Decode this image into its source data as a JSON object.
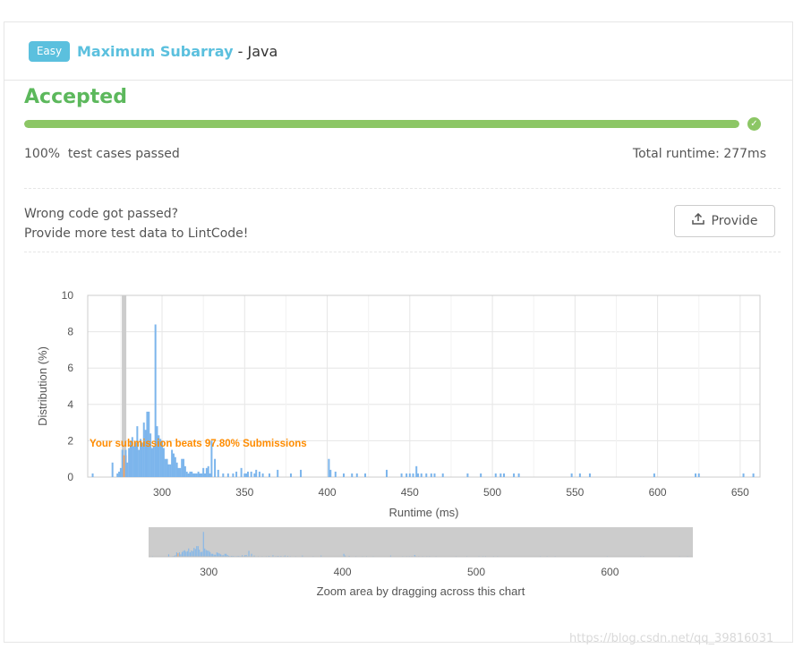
{
  "header": {
    "difficulty": "Easy",
    "problem": "Maximum Subarray",
    "separator": " - ",
    "language": "Java"
  },
  "result": {
    "status": "Accepted",
    "progress_percent": 100,
    "passed_text": "100%  test cases passed",
    "runtime_text": "Total runtime: 277ms"
  },
  "feedback": {
    "line1": "Wrong code got passed?",
    "line2": "Provide more test data to LintCode!",
    "provide_label": "Provide"
  },
  "watermark": "https://blog.csdn.net/qq_39816031",
  "colors": {
    "accent": "#5bc0de",
    "accepted": "#5cb85c",
    "progress": "#8cc665",
    "bar": "#7cb5ec",
    "highlight": "#f7a35c",
    "annotation": "#ff8c00"
  },
  "chart_data": {
    "type": "bar",
    "xlabel": "Runtime (ms)",
    "ylabel": "Distribution (%)",
    "xlim": [
      255,
      662
    ],
    "ylim": [
      0,
      10
    ],
    "xticks": [
      300,
      350,
      400,
      450,
      500,
      550,
      600,
      650
    ],
    "yticks": [
      0,
      2,
      4,
      6,
      8,
      10
    ],
    "grid": true,
    "annotation": "Your submission beats 97.80% Submissions",
    "submission_runtime": 277,
    "x": [
      258,
      270,
      273,
      274,
      275,
      276,
      277,
      278,
      279,
      280,
      281,
      282,
      283,
      284,
      285,
      286,
      287,
      288,
      289,
      290,
      291,
      292,
      293,
      294,
      295,
      296,
      297,
      298,
      299,
      300,
      301,
      302,
      303,
      304,
      305,
      306,
      307,
      308,
      309,
      310,
      311,
      312,
      313,
      314,
      315,
      316,
      317,
      318,
      319,
      320,
      321,
      322,
      323,
      324,
      325,
      326,
      327,
      328,
      329,
      330,
      332,
      334,
      337,
      340,
      343,
      345,
      348,
      350,
      351,
      352,
      354,
      356,
      357,
      359,
      361,
      365,
      370,
      378,
      384,
      401,
      402,
      405,
      410,
      415,
      418,
      423,
      436,
      445,
      448,
      450,
      452,
      454,
      455,
      457,
      460,
      463,
      465,
      470,
      485,
      493,
      502,
      505,
      507,
      513,
      516,
      548,
      553,
      559,
      598,
      623,
      625,
      652,
      658
    ],
    "values": [
      0.2,
      0.8,
      0.2,
      0.3,
      0.5,
      1.5,
      1.2,
      1.5,
      0.8,
      1.6,
      2.0,
      2.2,
      1.7,
      1.9,
      2.8,
      1.5,
      2.1,
      1.9,
      3.0,
      2.6,
      3.6,
      3.6,
      2.4,
      1.6,
      1.7,
      8.4,
      2.8,
      2.3,
      2.1,
      2.0,
      1.6,
      1.0,
      1.0,
      0.7,
      0.7,
      1.5,
      1.3,
      1.1,
      0.8,
      0.5,
      0.5,
      1.0,
      1.0,
      0.6,
      0.3,
      0.2,
      0.3,
      0.3,
      0.2,
      0.2,
      0.2,
      0.3,
      0.2,
      0.2,
      0.5,
      0.2,
      0.5,
      0.6,
      0.2,
      2.0,
      1.0,
      0.4,
      0.2,
      0.2,
      0.2,
      0.3,
      0.5,
      0.2,
      0.2,
      0.3,
      0.3,
      0.2,
      0.4,
      0.3,
      0.2,
      0.2,
      0.4,
      0.2,
      0.4,
      1.0,
      0.4,
      0.3,
      0.2,
      0.2,
      0.2,
      0.2,
      0.4,
      0.2,
      0.2,
      0.2,
      0.2,
      0.6,
      0.2,
      0.2,
      0.2,
      0.2,
      0.2,
      0.2,
      0.2,
      0.2,
      0.2,
      0.2,
      0.2,
      0.2,
      0.2,
      0.2,
      0.2,
      0.2,
      0.2,
      0.2,
      0.2,
      0.2,
      0.2
    ]
  },
  "navigator": {
    "xticks": [
      300,
      400,
      500,
      600
    ],
    "caption": "Zoom area by dragging across this chart"
  }
}
